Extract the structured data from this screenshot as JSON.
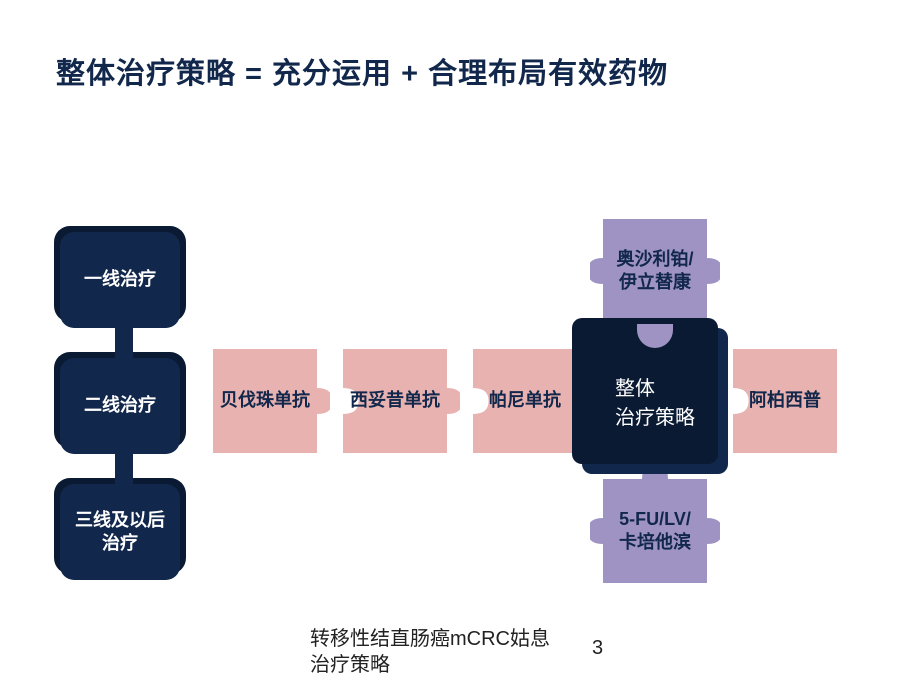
{
  "title": "整体治疗策略 = 充分运用 + 合理布局有效药物",
  "left_boxes": [
    {
      "label": "一线治疗"
    },
    {
      "label": "二线治疗"
    },
    {
      "label": "三线及以后\n治疗"
    }
  ],
  "puzzle_row": [
    {
      "label": "贝伐珠单抗",
      "color": "#e8b2b0",
      "text_color": "#11274b"
    },
    {
      "label": "西妥昔单抗",
      "color": "#e8b2b0",
      "text_color": "#11274b"
    },
    {
      "label": "帕尼单抗",
      "color": "#e8b2b0",
      "text_color": "#11274b"
    },
    {
      "label": "整体\n治疗策略",
      "color": "#11274b",
      "text_color": "#ffffff"
    },
    {
      "label": "阿柏西普",
      "color": "#e8b2b0",
      "text_color": "#11274b"
    }
  ],
  "puzzle_top": {
    "label": "奥沙利铂/\n伊立替康",
    "color": "#9e93c2",
    "text_color": "#11274b"
  },
  "puzzle_bottom": {
    "label": "5-FU/LV/\n卡培他滨",
    "color": "#9e93c2",
    "text_color": "#11274b"
  },
  "colors": {
    "dark_navy": "#11274b",
    "navy_back": "#0a1a33",
    "pink": "#e8b2b0",
    "lilac": "#9e93c2",
    "white": "#ffffff"
  },
  "footer": "转移性结直肠癌mCRC姑息\n治疗策略",
  "page_number": "3"
}
